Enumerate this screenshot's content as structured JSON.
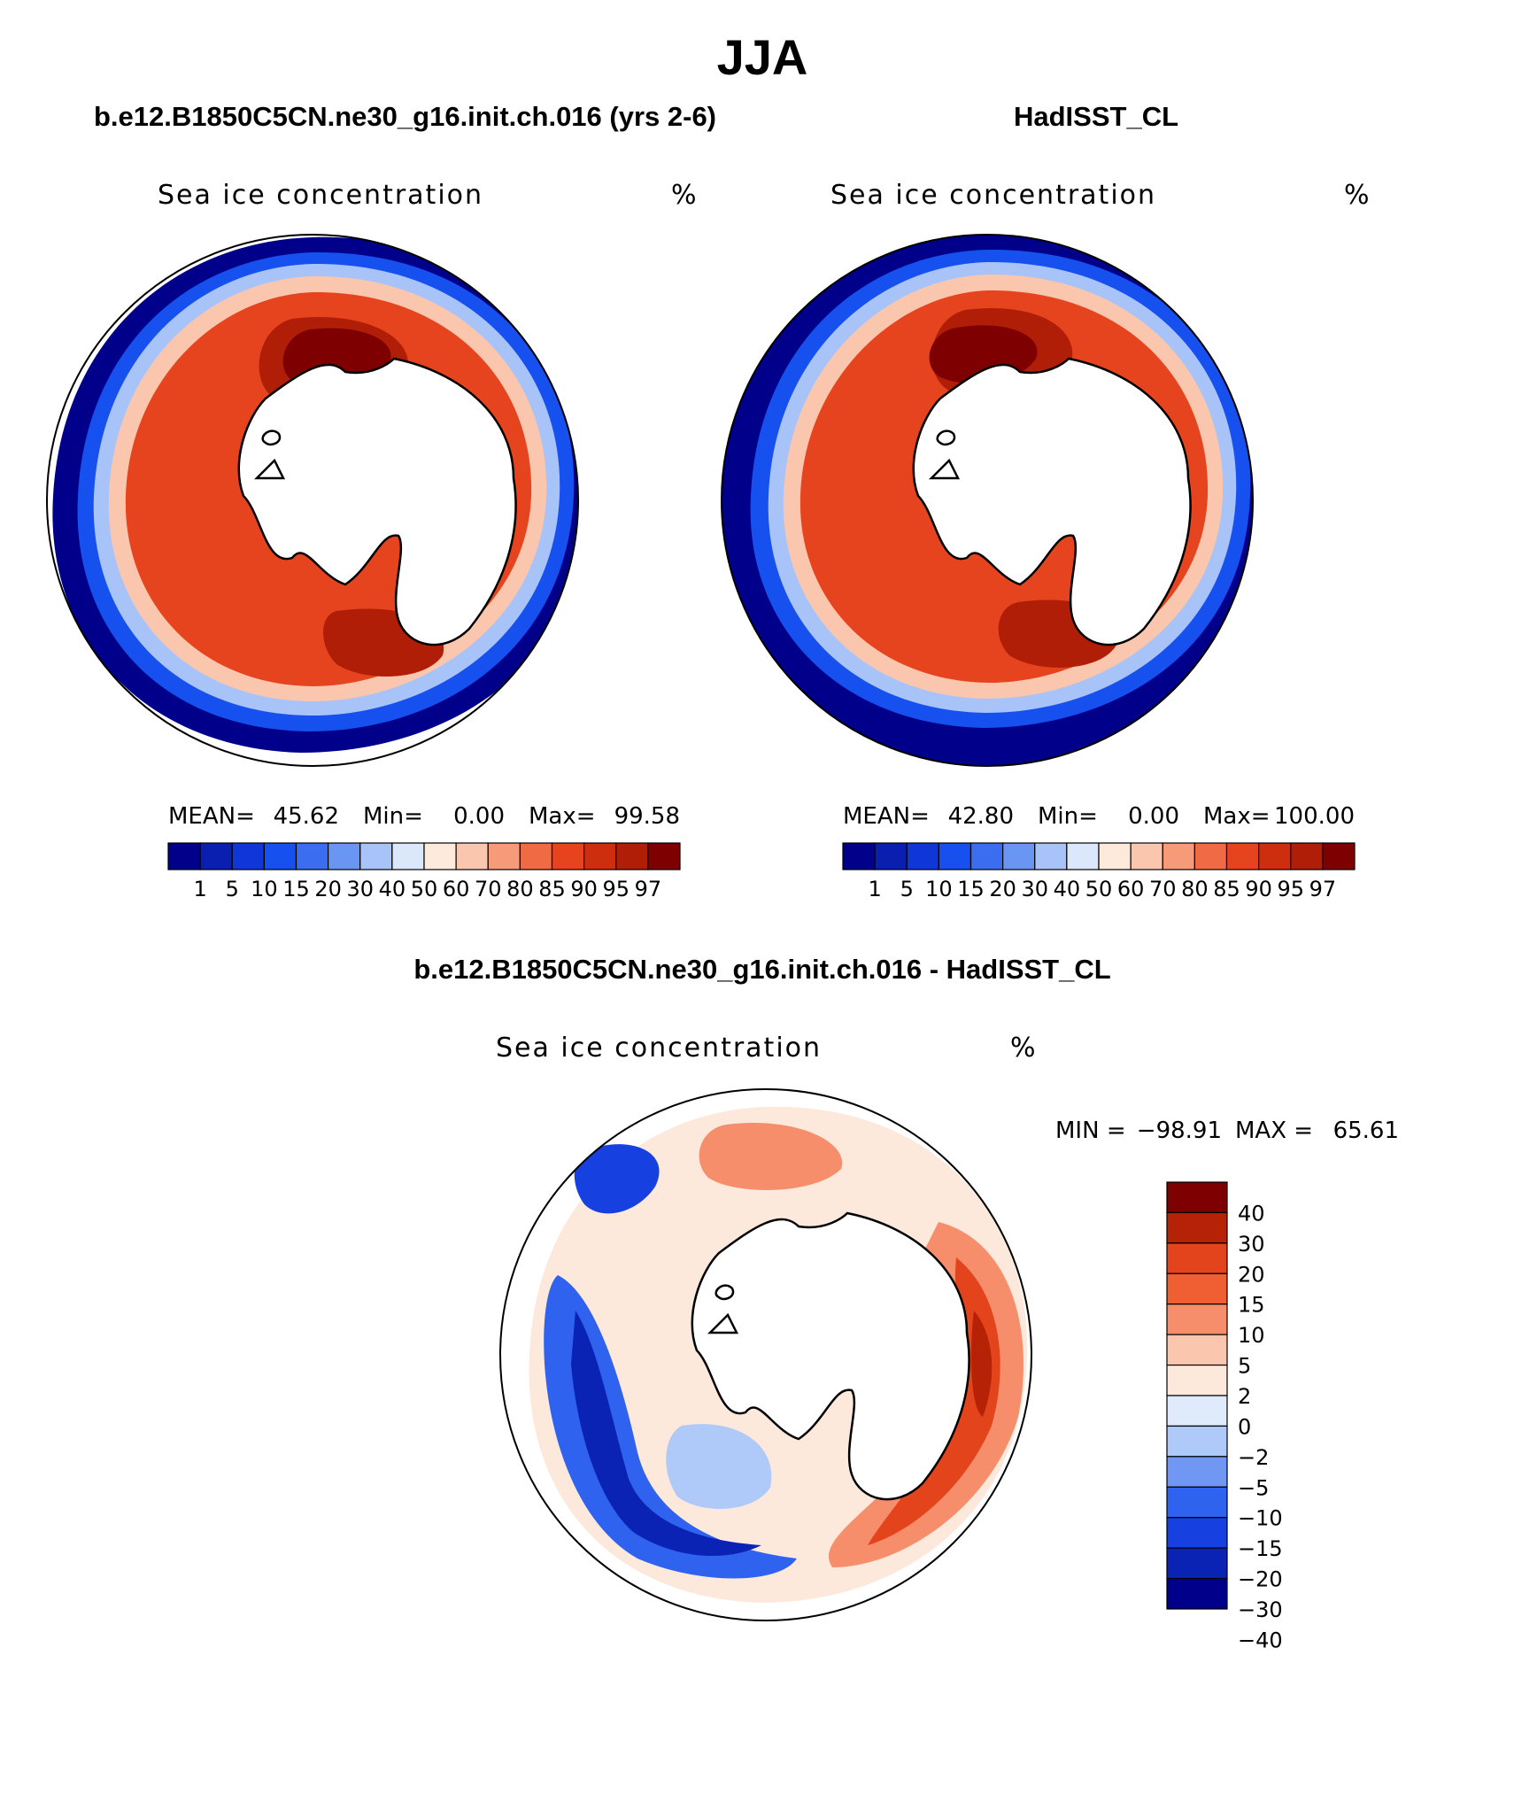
{
  "season": "JJA",
  "colors": {
    "conc": [
      "#00008b",
      "#0a1fb0",
      "#0f36d6",
      "#1650ee",
      "#3a6df0",
      "#6b95f2",
      "#a8c3f7",
      "#dbe8fb",
      "#fdeadb",
      "#fac7ae",
      "#f69a79",
      "#f06a44",
      "#e6441e",
      "#cc2e0e",
      "#b01e08",
      "#7f0000"
    ],
    "diff": [
      "#00008b",
      "#0a23b5",
      "#1640e0",
      "#2e62ef",
      "#6f97f3",
      "#afcaf8",
      "#dfeafb",
      "#fde8dc",
      "#fbc6ae",
      "#f68e6b",
      "#f05e33",
      "#e3441c",
      "#b52206",
      "#7f0000"
    ],
    "land": "#ffffff",
    "frame": "#000000"
  },
  "panels": [
    {
      "id": "model",
      "case_title": "b.e12.B1850C5CN.ne30_g16.init.ch.016 (yrs 2-6)",
      "variable": "Sea ice concentration",
      "units": "%",
      "stats": {
        "mean_label": "MEAN=",
        "mean": "45.62",
        "min_label": "Min=",
        "min": "0.00",
        "max_label": "Max=",
        "max": "99.58"
      },
      "colorbar_labels": [
        "1",
        "5",
        "10",
        "15",
        "20",
        "30",
        "40",
        "50",
        "60",
        "70",
        "80",
        "85",
        "90",
        "95",
        "97"
      ]
    },
    {
      "id": "obs",
      "case_title": "HadISST_CL",
      "variable": "Sea ice concentration",
      "units": "%",
      "stats": {
        "mean_label": "MEAN=",
        "mean": "42.80",
        "min_label": "Min=",
        "min": "0.00",
        "max_label": "Max=",
        "max": "100.00"
      },
      "colorbar_labels": [
        "1",
        "5",
        "10",
        "15",
        "20",
        "30",
        "40",
        "50",
        "60",
        "70",
        "80",
        "85",
        "90",
        "95",
        "97"
      ]
    },
    {
      "id": "diff",
      "case_title": "b.e12.B1850C5CN.ne30_g16.init.ch.016 - HadISST_CL",
      "variable": "Sea ice concentration",
      "units": "%",
      "minmax": {
        "min_label": "MIN =",
        "min": "−98.91",
        "max_label": "MAX =",
        "max": "65.61"
      },
      "colorbar_labels": [
        "40",
        "30",
        "20",
        "15",
        "10",
        "5",
        "2",
        "0",
        "−2",
        "−5",
        "−10",
        "−15",
        "−20",
        "−30",
        "−40"
      ]
    }
  ]
}
